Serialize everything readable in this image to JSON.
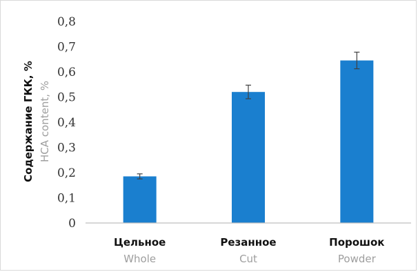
{
  "chart_data": {
    "type": "bar",
    "categories": [
      "Цельное",
      "Резанное",
      "Порошок"
    ],
    "categories_en": [
      "Whole",
      "Cut",
      "Powder"
    ],
    "values": [
      0.185,
      0.52,
      0.645
    ],
    "errors": [
      0.01,
      0.027,
      0.033
    ],
    "ylabel": "Содержание ГКК, %",
    "ylabel_en": "HCA content, %",
    "ylim": [
      0,
      0.8
    ],
    "yticks": [
      0,
      0.1,
      0.2,
      0.3,
      0.4,
      0.5,
      0.6,
      0.7,
      0.8
    ],
    "ytick_labels": [
      "0",
      "0,1",
      "0,2",
      "0,3",
      "0,4",
      "0,5",
      "0,6",
      "0,7",
      "0,8"
    ],
    "grid": false,
    "legend": "none",
    "colors": {
      "bar": "#1a7fcf",
      "error_bar": "#404040",
      "axis": "#bfbfbf"
    }
  }
}
